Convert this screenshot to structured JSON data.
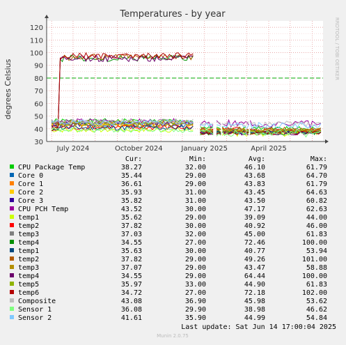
{
  "chart_data": {
    "type": "line",
    "title": "Temperatures - by year",
    "ylabel": "degrees Celsius",
    "ylim": [
      30,
      125
    ],
    "yticks": [
      30,
      40,
      50,
      60,
      70,
      80,
      90,
      100,
      110,
      120
    ],
    "xticks": [
      "July 2024",
      "October 2024",
      "January 2025",
      "April 2025"
    ],
    "x_range": [
      "2024-05-25",
      "2025-06-16"
    ],
    "warning_line": 80,
    "watermark": "RRDTOOL / TOBI OETIKER",
    "legend_headers": [
      "Cur:",
      "Min:",
      "Avg:",
      "Max:"
    ],
    "series": [
      {
        "name": "CPU Package Temp",
        "color": "#00cc00",
        "cur": "38.27",
        "min": "32.00",
        "avg": "46.10",
        "max": "61.79"
      },
      {
        "name": "Core 0",
        "color": "#0066b3",
        "cur": "35.44",
        "min": "29.00",
        "avg": "43.68",
        "max": "64.70"
      },
      {
        "name": "Core 1",
        "color": "#ff8000",
        "cur": "36.61",
        "min": "29.00",
        "avg": "43.83",
        "max": "61.79"
      },
      {
        "name": "Core 2",
        "color": "#ffcc00",
        "cur": "35.93",
        "min": "31.00",
        "avg": "43.45",
        "max": "64.63"
      },
      {
        "name": "Core 3",
        "color": "#330099",
        "cur": "35.82",
        "min": "31.00",
        "avg": "43.50",
        "max": "60.82"
      },
      {
        "name": "CPU PCH Temp",
        "color": "#990099",
        "cur": "43.52",
        "min": "30.00",
        "avg": "47.17",
        "max": "62.63"
      },
      {
        "name": "temp1",
        "color": "#ccff00",
        "cur": "35.62",
        "min": "29.00",
        "avg": "39.09",
        "max": "44.00"
      },
      {
        "name": "temp2",
        "color": "#ff0000",
        "cur": "37.82",
        "min": "30.00",
        "avg": "40.92",
        "max": "46.00"
      },
      {
        "name": "temp3",
        "color": "#808080",
        "cur": "37.03",
        "min": "32.00",
        "avg": "45.00",
        "max": "61.83"
      },
      {
        "name": "temp4",
        "color": "#008f00",
        "cur": "34.55",
        "min": "27.00",
        "avg": "72.46",
        "max": "100.00"
      },
      {
        "name": "temp1",
        "color": "#00487d",
        "cur": "35.63",
        "min": "30.00",
        "avg": "40.77",
        "max": "53.94"
      },
      {
        "name": "temp2",
        "color": "#b35a00",
        "cur": "37.82",
        "min": "29.00",
        "avg": "49.26",
        "max": "101.00"
      },
      {
        "name": "temp3",
        "color": "#b38f00",
        "cur": "37.07",
        "min": "29.00",
        "avg": "43.47",
        "max": "58.88"
      },
      {
        "name": "temp4",
        "color": "#6b006b",
        "cur": "34.55",
        "min": "29.00",
        "avg": "64.44",
        "max": "100.00"
      },
      {
        "name": "temp5",
        "color": "#8fb300",
        "cur": "35.97",
        "min": "33.00",
        "avg": "44.90",
        "max": "61.83"
      },
      {
        "name": "temp6",
        "color": "#b30000",
        "cur": "34.72",
        "min": "27.00",
        "avg": "72.18",
        "max": "102.00"
      },
      {
        "name": "Composite",
        "color": "#bebebe",
        "cur": "43.08",
        "min": "36.90",
        "avg": "45.98",
        "max": "53.62"
      },
      {
        "name": "Sensor 1",
        "color": "#80ff80",
        "cur": "36.08",
        "min": "29.90",
        "avg": "38.98",
        "max": "46.62"
      },
      {
        "name": "Sensor 2",
        "color": "#80c9ff",
        "cur": "41.61",
        "min": "35.90",
        "avg": "44.99",
        "max": "54.84"
      }
    ],
    "last_update": "Last update: Sat Jun 14 17:00:04 2025",
    "footer": "Munin 2.0.75"
  }
}
